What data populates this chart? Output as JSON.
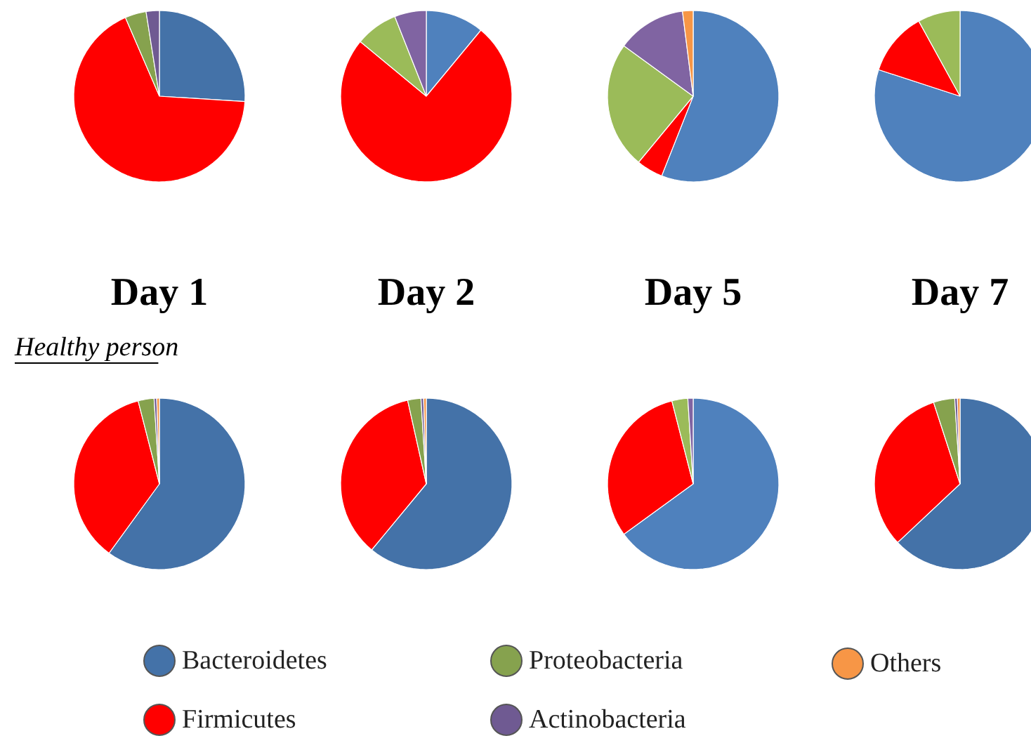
{
  "chart_data": [
    {
      "type": "pie",
      "title": "Day 1",
      "legend": "bottom",
      "categories": [
        "Bacteroidetes",
        "Firmicutes",
        "Proteobacteria",
        "Actinobacteria",
        "Others"
      ],
      "values": [
        26,
        67.5,
        4,
        2.5,
        0
      ],
      "colors": [
        "#4472a8",
        "#ff0000",
        "#86a24e",
        "#6f5a92",
        "#f79646"
      ]
    },
    {
      "type": "pie",
      "title": "Day 2",
      "categories": [
        null,
        null,
        null,
        null,
        null
      ],
      "values": [
        11,
        75,
        8,
        6,
        0
      ],
      "colors": [
        "#4f81bd",
        "#ff0000",
        "#9bbb59",
        "#8064a2",
        "#f79646"
      ]
    },
    {
      "type": "pie",
      "title": "Day 5",
      "categories": [
        null,
        null,
        null,
        null,
        null
      ],
      "values": [
        56,
        5,
        24,
        13,
        2
      ],
      "colors": [
        "#4f81bd",
        "#ff0000",
        "#9bbb59",
        "#8064a2",
        "#f79646"
      ]
    },
    {
      "type": "pie",
      "title": "Day 7",
      "categories": [
        null,
        null,
        null,
        null,
        null
      ],
      "values": [
        80,
        12,
        8,
        0,
        0
      ],
      "colors": [
        "#4f81bd",
        "#ff0000",
        "#9bbb59",
        "#8064a2",
        "#f79646"
      ]
    },
    {
      "type": "pie",
      "subtitle": "Healthy person",
      "categories": [
        null,
        null,
        null,
        null,
        null
      ],
      "values": [
        60,
        36,
        3,
        0.5,
        0.5
      ],
      "colors": [
        "#4472a8",
        "#ff0000",
        "#86a24e",
        "#6f5a92",
        "#f79646"
      ]
    },
    {
      "type": "pie",
      "categories": [
        null,
        null,
        null,
        null,
        null
      ],
      "values": [
        61,
        35.5,
        2.5,
        0.5,
        0.5
      ],
      "colors": [
        "#4472a8",
        "#ff0000",
        "#86a24e",
        "#6f5a92",
        "#f79646"
      ]
    },
    {
      "type": "pie",
      "categories": [
        null,
        null,
        null,
        null,
        null
      ],
      "values": [
        65,
        31,
        3,
        1,
        0
      ],
      "colors": [
        "#4f81bd",
        "#ff0000",
        "#9bbb59",
        "#8064a2",
        "#f79646"
      ]
    },
    {
      "type": "pie",
      "categories": [
        null,
        null,
        null,
        null,
        null
      ],
      "values": [
        63,
        32,
        4,
        0.5,
        0.5
      ],
      "colors": [
        "#4472a8",
        "#ff0000",
        "#86a24e",
        "#6f5a92",
        "#f79646"
      ]
    }
  ]
}
